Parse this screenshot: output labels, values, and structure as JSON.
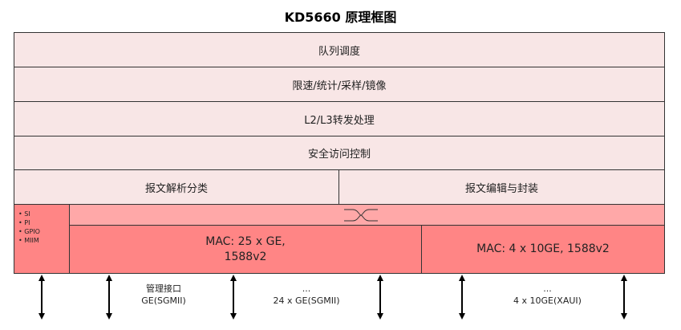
{
  "title": "KD5660 原理框图",
  "layers": [
    "队列调度",
    "限速/统计/采样/镜像",
    "L2/L3转发处理",
    "安全访问控制"
  ],
  "parse_row": {
    "left": "报文解析分类",
    "right": "报文编辑与封装"
  },
  "mgmt_list": [
    "SI",
    "PI",
    "GPIO",
    "MIIM"
  ],
  "switch_icon": "crossbar-switch-icon",
  "mac_ge": "MAC: 25 x GE,\n1588v2",
  "mac_10ge": "MAC: 4 x 10GE, 1588v2",
  "ports": {
    "mgmt_label": "管理接口\nGE(SGMII)",
    "ge_label": "...\n24 x GE(SGMII)",
    "xge_label": "...\n4 x 10GE(XAUI)"
  },
  "colors": {
    "upper": "#f8e6e6",
    "switch": "#ffa8a8",
    "mac": "#ff8585"
  }
}
